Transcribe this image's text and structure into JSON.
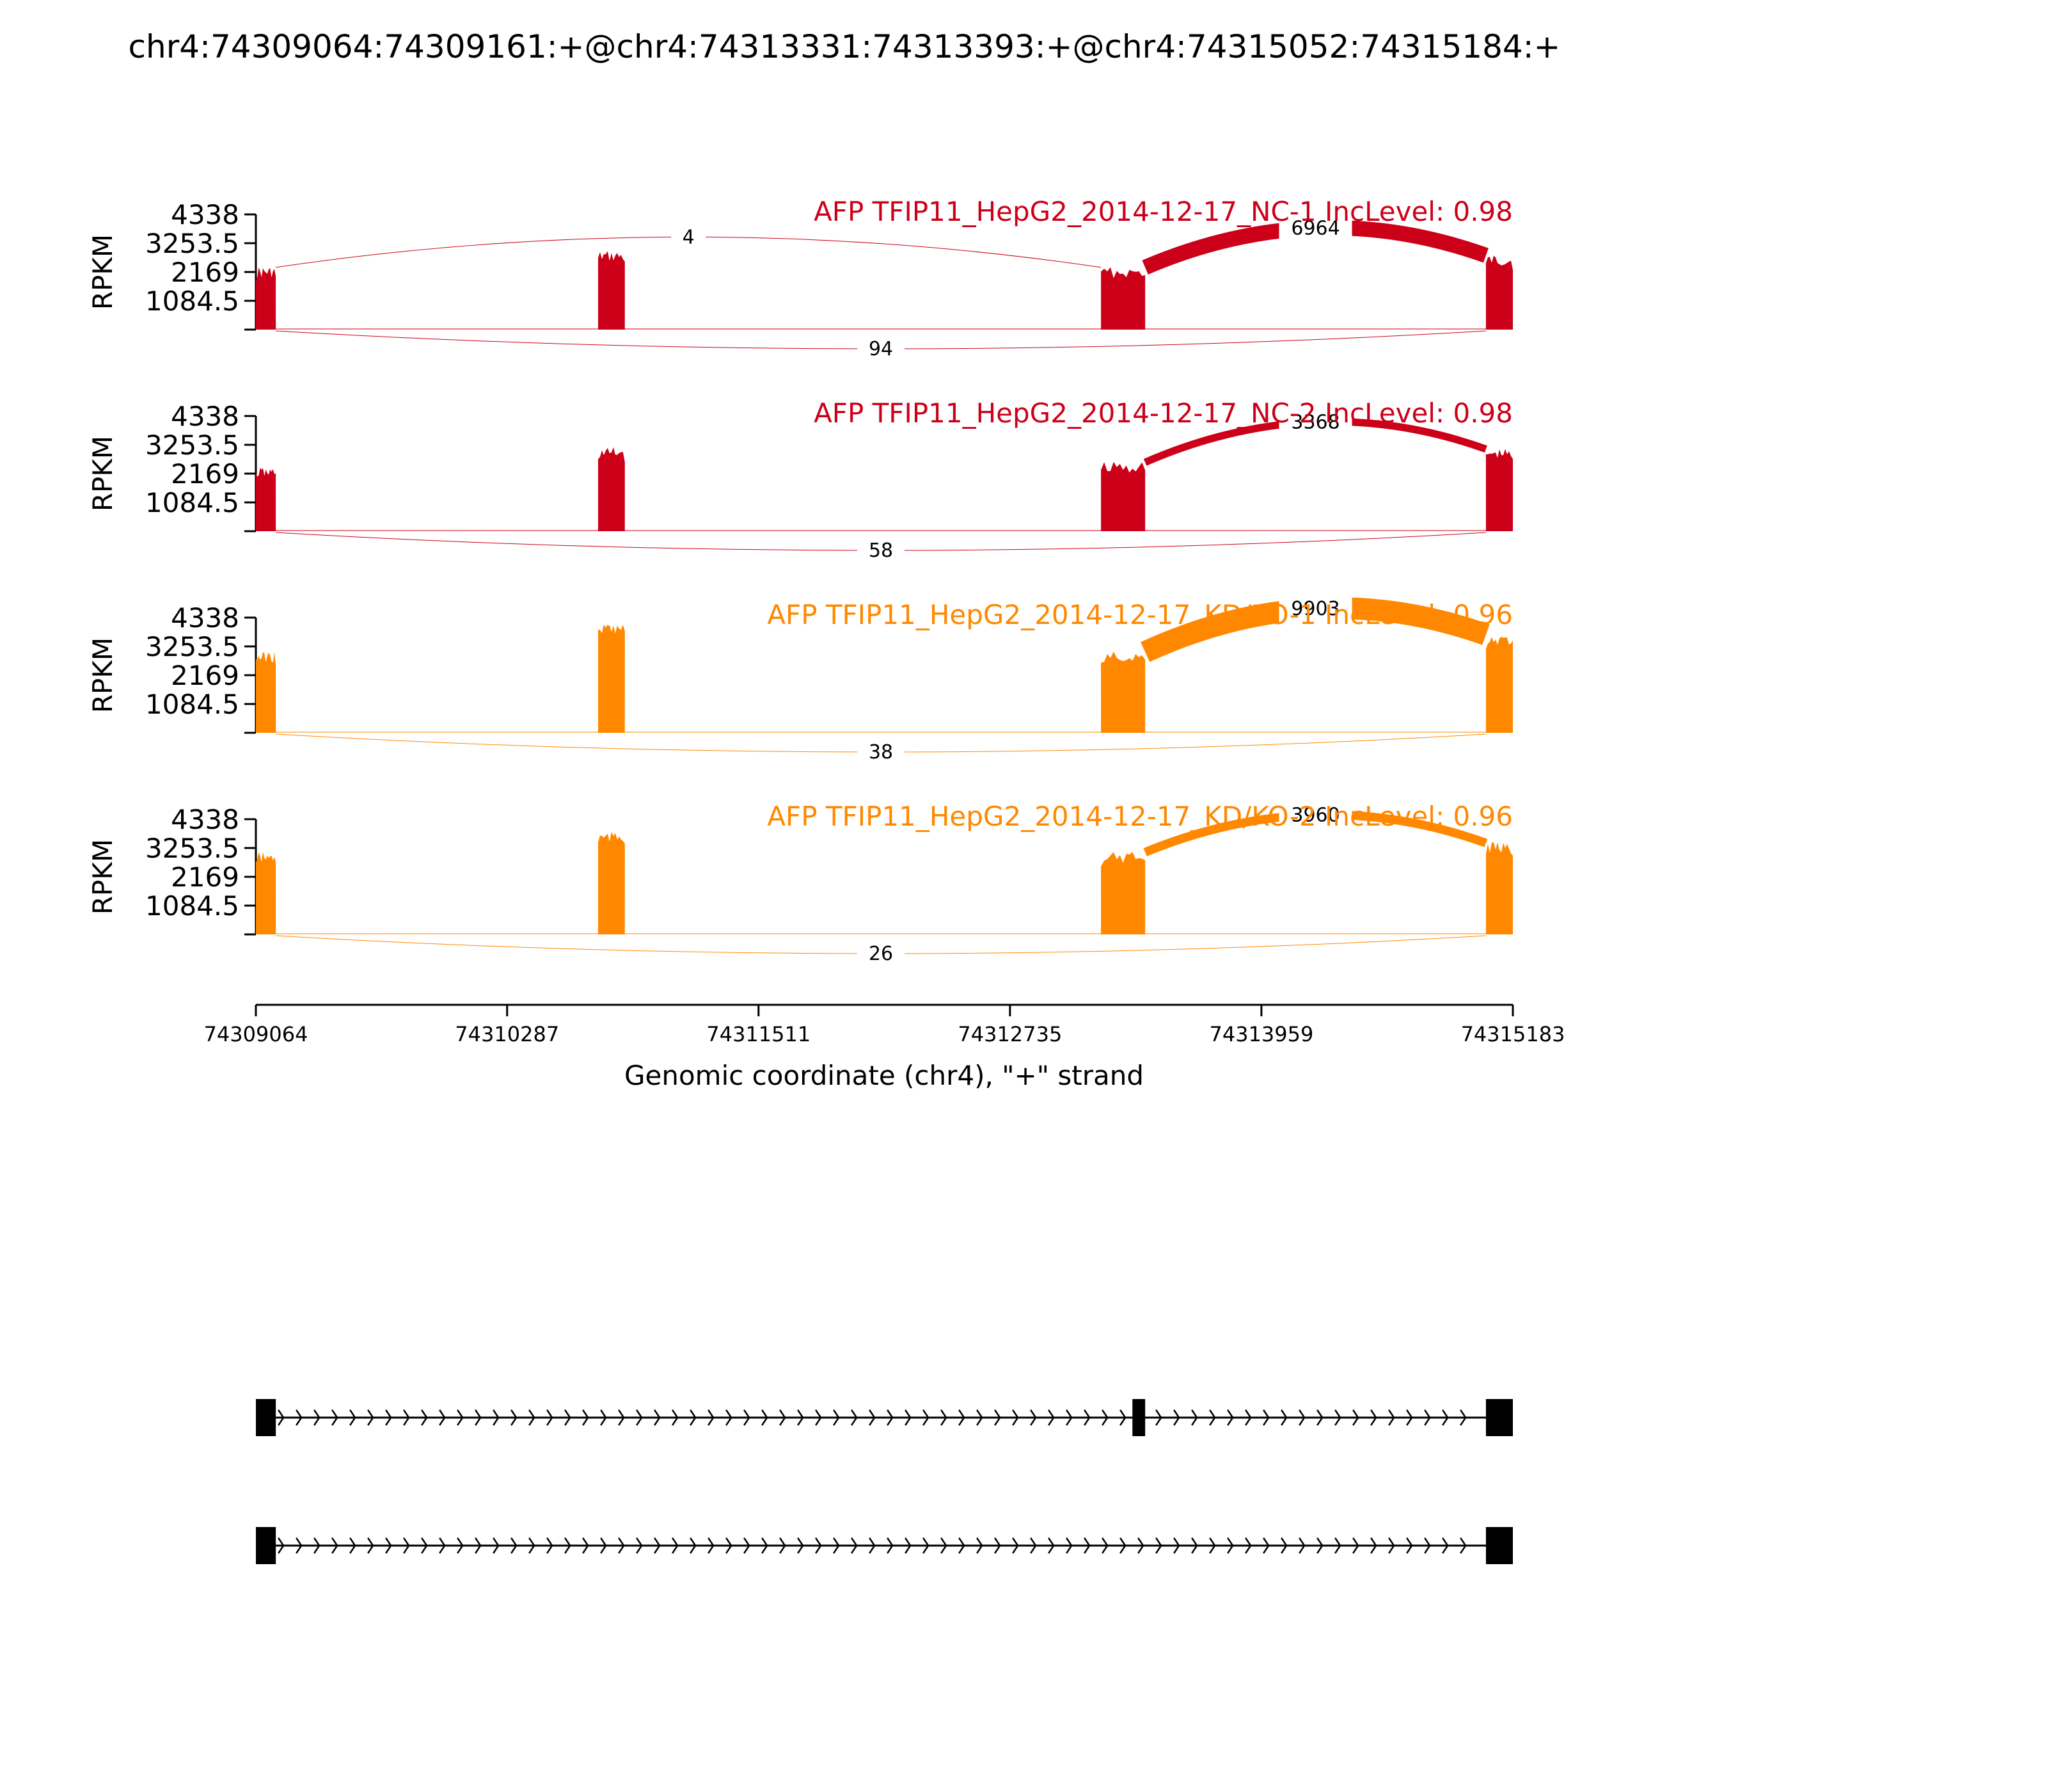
{
  "figure": {
    "title": "chr4:74309064:74309161:+@chr4:74313331:74313393:+@chr4:74315052:74315184:+"
  },
  "chart_data": {
    "type": "sashimi",
    "title": "chr4:74309064:74309161:+@chr4:74313331:74313393:+@chr4:74315052:74315184:+",
    "xlabel": "Genomic coordinate (chr4), \"+\" strand",
    "ylabel": "RPKM",
    "xlim": [
      74309064,
      74315183
    ],
    "xticks": [
      "74309064",
      "74310287",
      "74311511",
      "74312735",
      "74313959",
      "74315183"
    ],
    "ylim": [
      0,
      4338
    ],
    "yticks": [
      "4338",
      "3253.5",
      "2169",
      "1084.5"
    ],
    "colors": {
      "NC": "#cc0018",
      "KD": "#ff8800",
      "gene": "#000000"
    },
    "exons_covered": [
      [
        74309064,
        74309161
      ],
      [
        74310730,
        74310860
      ],
      [
        74313178,
        74313393
      ],
      [
        74315052,
        74315183
      ]
    ],
    "samples": [
      {
        "label": "AFP TFIP11_HepG2_2014-12-17_NC-1 IncLevel: 0.98",
        "group": "NC",
        "exon_heights": [
          2150,
          2750,
          2150,
          2600
        ],
        "junctions": [
          {
            "from": 74309161,
            "to": 74313178,
            "count": "4",
            "side": "above"
          },
          {
            "from": 74313393,
            "to": 74315052,
            "count": "6964",
            "side": "above"
          },
          {
            "from": 74309161,
            "to": 74315052,
            "count": "94",
            "side": "below"
          }
        ]
      },
      {
        "label": "AFP TFIP11_HepG2_2014-12-17_NC-2 IncLevel: 0.98",
        "group": "NC",
        "exon_heights": [
          2200,
          2950,
          2400,
          2900
        ],
        "junctions": [
          {
            "from": 74313393,
            "to": 74315052,
            "count": "3368",
            "side": "above"
          },
          {
            "from": 74309161,
            "to": 74315052,
            "count": "58",
            "side": "below"
          }
        ]
      },
      {
        "label": "AFP TFIP11_HepG2_2014-12-17_KD/KO-1 IncLevel: 0.96",
        "group": "KD",
        "exon_heights": [
          2850,
          3900,
          2850,
          3500
        ],
        "junctions": [
          {
            "from": 74313393,
            "to": 74315052,
            "count": "9903",
            "side": "above"
          },
          {
            "from": 74309161,
            "to": 74315052,
            "count": "38",
            "side": "below"
          }
        ]
      },
      {
        "label": "AFP TFIP11_HepG2_2014-12-17_KD/KO-2 IncLevel: 0.96",
        "group": "KD",
        "exon_heights": [
          2900,
          3650,
          2900,
          3250
        ],
        "junctions": [
          {
            "from": 74313393,
            "to": 74315052,
            "count": "3960",
            "side": "above"
          },
          {
            "from": 74309161,
            "to": 74315052,
            "count": "26",
            "side": "below"
          }
        ]
      }
    ],
    "gene_models": [
      {
        "exons": [
          [
            74309064,
            74309161
          ],
          [
            74313331,
            74313393
          ],
          [
            74315052,
            74315183
          ]
        ]
      },
      {
        "exons": [
          [
            74309064,
            74309161
          ],
          [
            74315052,
            74315183
          ]
        ]
      }
    ]
  }
}
